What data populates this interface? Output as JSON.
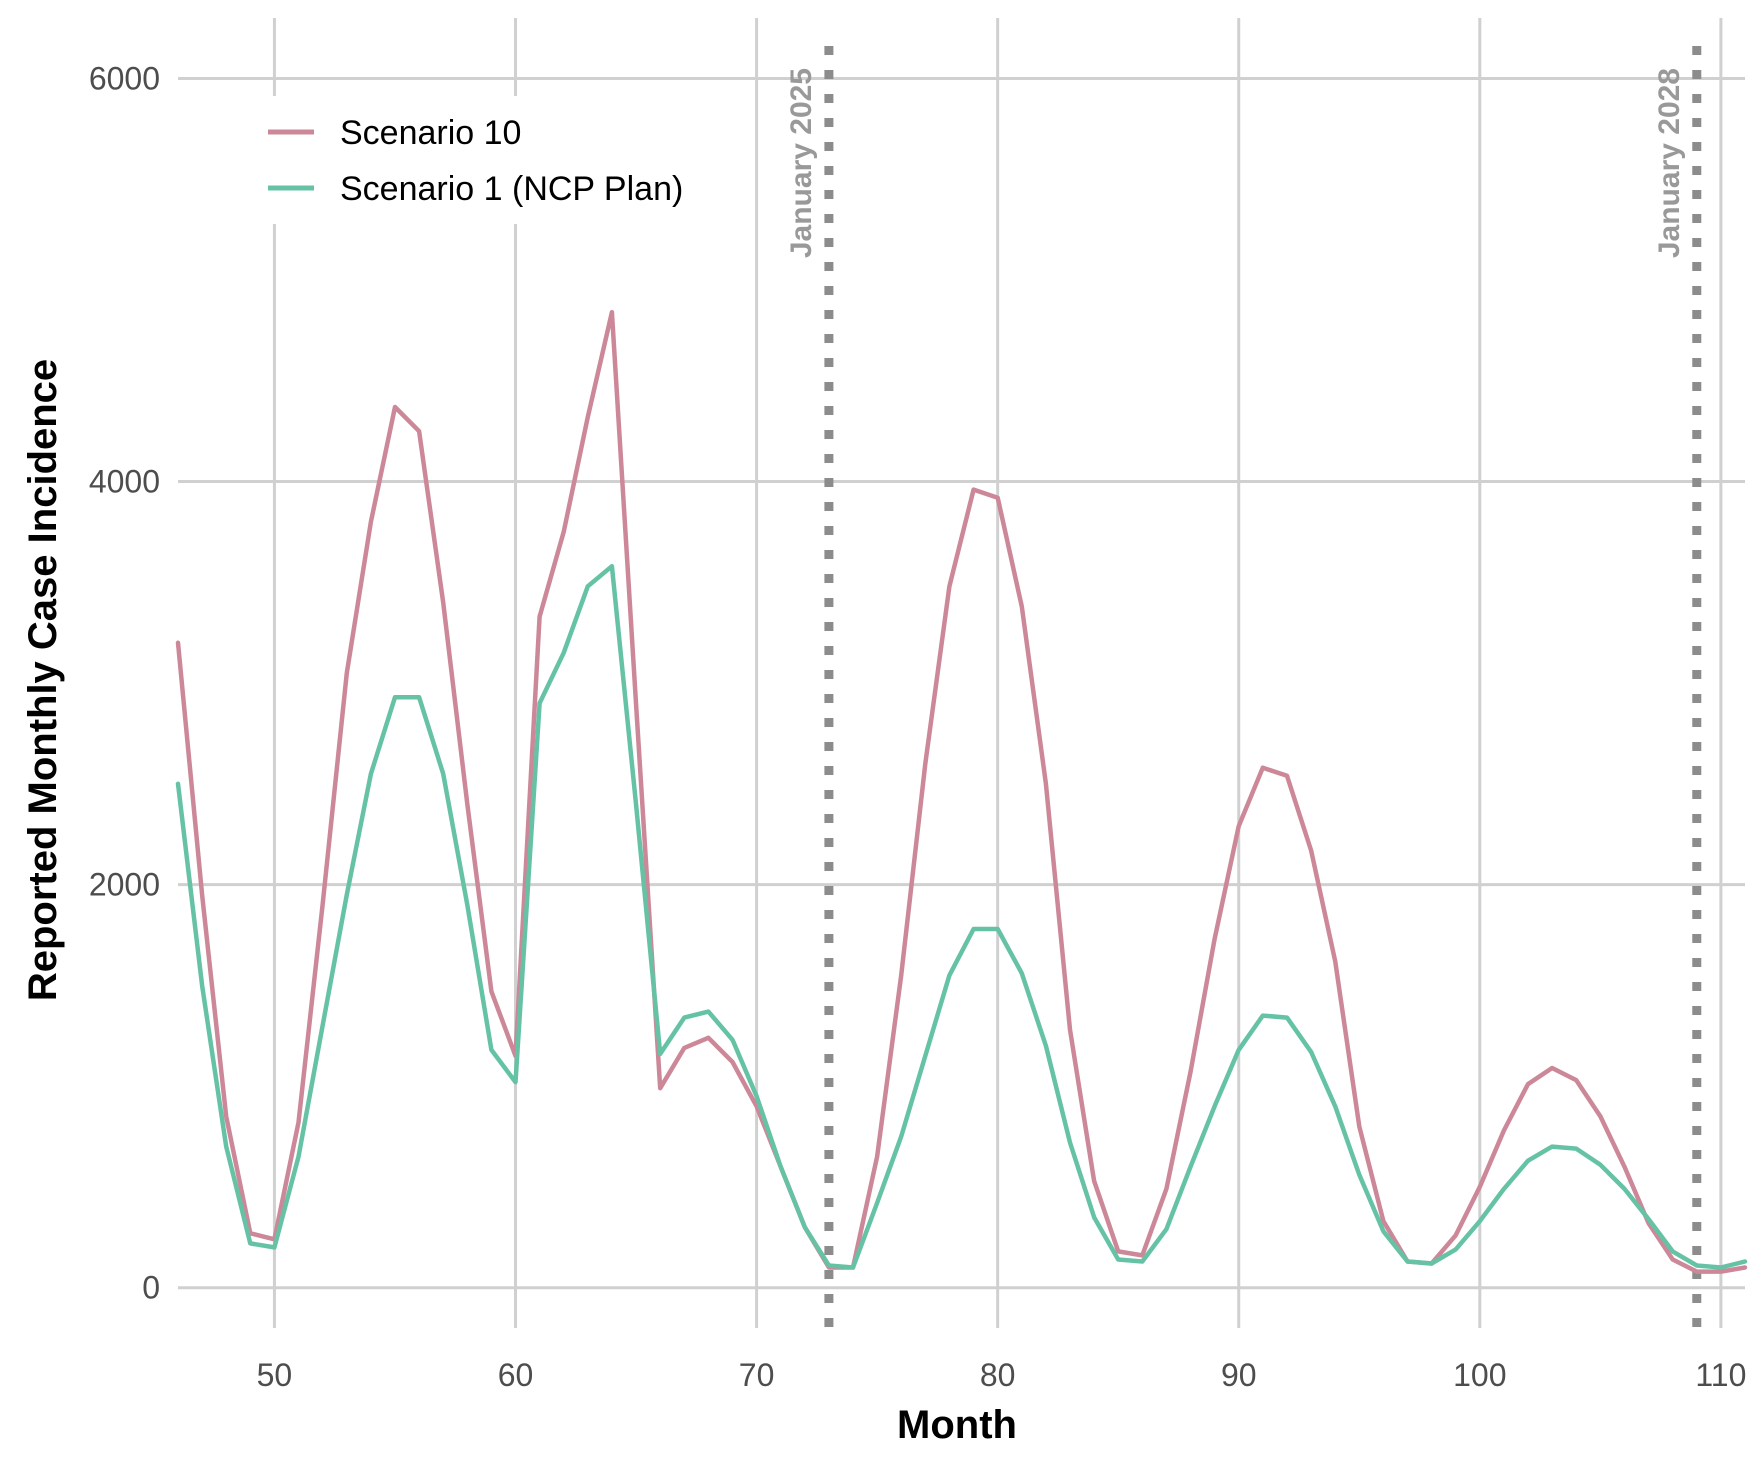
{
  "chart_data": {
    "type": "line",
    "xlabel": "Month",
    "ylabel": "Reported Monthly Case Incidence",
    "xlim": [
      46,
      111
    ],
    "ylim": [
      -200,
      6300
    ],
    "x_ticks": [
      50,
      60,
      70,
      80,
      90,
      100,
      110
    ],
    "y_ticks": [
      0,
      2000,
      4000,
      6000
    ],
    "grid": true,
    "legend_position": "top-left",
    "x": [
      46,
      47,
      48,
      49,
      50,
      51,
      52,
      53,
      54,
      55,
      56,
      57,
      58,
      59,
      60,
      61,
      62,
      63,
      64,
      65,
      66,
      67,
      68,
      69,
      70,
      71,
      72,
      73,
      74,
      75,
      76,
      77,
      78,
      79,
      80,
      81,
      82,
      83,
      84,
      85,
      86,
      87,
      88,
      89,
      90,
      91,
      92,
      93,
      94,
      95,
      96,
      97,
      98,
      99,
      100,
      101,
      102,
      103,
      104,
      105,
      106,
      107,
      108,
      109,
      110,
      111
    ],
    "series": [
      {
        "name": "Scenario 10",
        "color": "#CC8899",
        "values": [
          3200,
          1950,
          850,
          270,
          240,
          820,
          1900,
          3050,
          3800,
          4370,
          4250,
          3400,
          2400,
          1470,
          1150,
          3330,
          3750,
          4320,
          4840,
          2900,
          990,
          1190,
          1240,
          1120,
          900,
          600,
          300,
          100,
          100,
          650,
          1550,
          2600,
          3480,
          3960,
          3920,
          3380,
          2500,
          1280,
          530,
          180,
          160,
          490,
          1070,
          1730,
          2290,
          2580,
          2540,
          2170,
          1620,
          800,
          330,
          130,
          120,
          260,
          500,
          780,
          1010,
          1090,
          1030,
          850,
          600,
          320,
          140,
          80,
          80,
          100
        ]
      },
      {
        "name": "Scenario 1 (NCP Plan)",
        "color": "#66C2A5",
        "values": [
          2500,
          1500,
          700,
          220,
          200,
          650,
          1300,
          1950,
          2550,
          2930,
          2930,
          2550,
          1900,
          1180,
          1020,
          2900,
          3150,
          3480,
          3580,
          2400,
          1160,
          1340,
          1370,
          1230,
          950,
          600,
          300,
          110,
          100,
          420,
          750,
          1150,
          1550,
          1780,
          1780,
          1560,
          1200,
          720,
          350,
          140,
          130,
          290,
          600,
          900,
          1180,
          1350,
          1340,
          1170,
          900,
          560,
          280,
          130,
          120,
          190,
          330,
          490,
          630,
          700,
          690,
          610,
          490,
          340,
          180,
          110,
          100,
          130
        ]
      }
    ],
    "annotations": [
      {
        "x": 73,
        "label": "January 2025"
      },
      {
        "x": 109,
        "label": "January 2028"
      }
    ]
  }
}
